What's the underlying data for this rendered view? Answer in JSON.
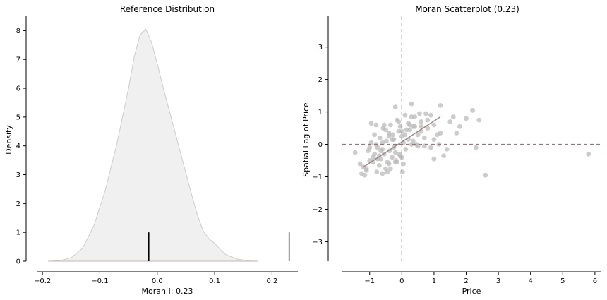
{
  "chart_data": [
    {
      "type": "area",
      "title": "Reference Distribution",
      "xlabel": "Moran I: 0.23",
      "ylabel": "Density",
      "xlim": [
        -0.21,
        0.245
      ],
      "ylim": [
        0,
        8.5
      ],
      "xticks": [
        -0.2,
        -0.1,
        0.0,
        0.1,
        0.2
      ],
      "xtick_labels": [
        "−0.2",
        "−0.1",
        "0.0",
        "0.1",
        "0.2"
      ],
      "yticks": [
        0,
        1,
        2,
        3,
        4,
        5,
        6,
        7,
        8
      ],
      "ytick_labels": [
        "0",
        "1",
        "2",
        "3",
        "4",
        "5",
        "6",
        "7",
        "8"
      ],
      "grid": false,
      "density_curve": {
        "x": [
          -0.19,
          -0.17,
          -0.15,
          -0.13,
          -0.11,
          -0.09,
          -0.07,
          -0.05,
          -0.04,
          -0.03,
          -0.02,
          -0.01,
          0.0,
          0.01,
          0.02,
          0.03,
          0.04,
          0.05,
          0.06,
          0.07,
          0.08,
          0.09,
          0.1,
          0.11,
          0.12,
          0.14,
          0.16,
          0.175
        ],
        "y": [
          0.0,
          0.02,
          0.12,
          0.45,
          1.25,
          2.5,
          4.1,
          6.0,
          7.1,
          7.85,
          8.05,
          7.6,
          6.85,
          6.05,
          5.3,
          4.55,
          3.8,
          3.05,
          2.3,
          1.6,
          1.05,
          0.78,
          0.62,
          0.4,
          0.22,
          0.07,
          0.01,
          0.0
        ],
        "color": "#cccccc",
        "fill": "#f0f0f0"
      },
      "reference_line": {
        "x": -0.015,
        "height": 1.0,
        "color": "#000000"
      },
      "observed_line": {
        "x": 0.23,
        "height": 1.0,
        "color": "#9b8a8a"
      }
    },
    {
      "type": "scatter",
      "title": "Moran Scatterplot (0.23)",
      "xlabel": "Price",
      "ylabel": "Spatial Lag of Price",
      "xlim": [
        -1.85,
        6.2
      ],
      "ylim": [
        -3.6,
        3.95
      ],
      "xticks": [
        -1,
        0,
        1,
        2,
        3,
        4,
        5,
        6
      ],
      "xtick_labels": [
        "−1",
        "0",
        "1",
        "2",
        "3",
        "4",
        "5",
        "6"
      ],
      "yticks": [
        -3,
        -2,
        -1,
        0,
        1,
        2,
        3
      ],
      "ytick_labels": [
        "−3",
        "−2",
        "−1",
        "0",
        "1",
        "2",
        "3"
      ],
      "grid": false,
      "point_color": "#bbbbbb",
      "fit_line": {
        "x": [
          -1.2,
          1.2
        ],
        "y": [
          -0.7,
          0.85
        ],
        "color": "#a08888"
      },
      "zero_lines_color": "#8b7b7b",
      "points": {
        "x": [
          -1.45,
          -1.3,
          -1.25,
          -1.2,
          -1.15,
          -1.1,
          -1.05,
          -1.0,
          -0.95,
          -0.9,
          -0.85,
          -0.8,
          -0.78,
          -0.75,
          -0.7,
          -0.68,
          -0.65,
          -0.6,
          -0.58,
          -0.55,
          -0.5,
          -0.48,
          -0.45,
          -0.4,
          -0.38,
          -0.35,
          -0.3,
          -0.28,
          -0.25,
          -0.2,
          -0.18,
          -0.15,
          -0.1,
          -0.08,
          -0.05,
          0.0,
          0.02,
          0.05,
          0.1,
          0.12,
          0.15,
          0.2,
          0.25,
          0.3,
          0.35,
          0.4,
          0.5,
          0.55,
          0.6,
          0.7,
          0.8,
          0.9,
          1.0,
          1.1,
          1.2,
          1.3,
          1.5,
          1.6,
          1.8,
          2.0,
          2.3,
          2.4,
          2.6,
          5.8,
          -1.0,
          -0.9,
          -0.85,
          -0.7,
          -0.6,
          -0.5,
          -0.4,
          -0.3,
          -0.2,
          -0.1,
          0.0,
          0.1,
          0.2,
          0.3,
          0.4,
          0.5,
          0.6,
          0.7,
          0.8,
          0.9,
          1.0,
          1.2,
          1.4,
          1.7,
          2.2,
          -0.8,
          -0.6,
          -0.4,
          -0.2,
          0.0,
          0.3,
          0.6,
          1.0,
          -1.1,
          -0.95,
          -0.75,
          -0.55,
          -0.35,
          -0.15,
          0.05,
          0.25,
          0.45,
          -0.65,
          -0.45,
          -0.25,
          -0.05,
          0.35,
          0.75,
          1.15
        ],
        "y": [
          -0.25,
          -0.6,
          -0.9,
          -0.7,
          -0.95,
          -0.75,
          -0.2,
          -0.5,
          0.65,
          -0.4,
          -0.3,
          0.6,
          -0.85,
          -0.1,
          -0.65,
          0.2,
          -0.45,
          -0.9,
          0.5,
          -0.3,
          -0.75,
          0.1,
          -0.55,
          0.35,
          -0.2,
          0.6,
          -0.4,
          0.3,
          -0.1,
          1.15,
          -0.5,
          0.75,
          0.4,
          -0.3,
          0.55,
          0.25,
          -0.85,
          0.05,
          0.9,
          -0.15,
          0.45,
          0.15,
          0.6,
          1.25,
          0.1,
          0.85,
          -0.05,
          0.95,
          0.4,
          0.2,
          0.75,
          -0.1,
          0.6,
          0.3,
          1.2,
          -0.35,
          0.7,
          0.85,
          0.55,
          0.8,
          -0.1,
          0.75,
          -0.95,
          -0.3,
          -0.1,
          -0.55,
          0.3,
          -0.35,
          0.05,
          0.45,
          -0.6,
          0.15,
          -0.25,
          0.7,
          -0.4,
          0.3,
          0.65,
          0.0,
          0.55,
          0.3,
          0.7,
          -0.05,
          0.5,
          0.9,
          0.15,
          0.35,
          -0.15,
          0.35,
          1.05,
          0.0,
          -0.15,
          0.25,
          -0.55,
          0.4,
          0.85,
          0.55,
          -0.45,
          -0.8,
          0.05,
          -0.45,
          0.6,
          -0.75,
          -0.55,
          -0.6,
          0.45,
          0.0,
          -0.2,
          -0.85,
          0.15,
          -0.35,
          0.55,
          0.95,
          0.0
        ]
      }
    }
  ]
}
